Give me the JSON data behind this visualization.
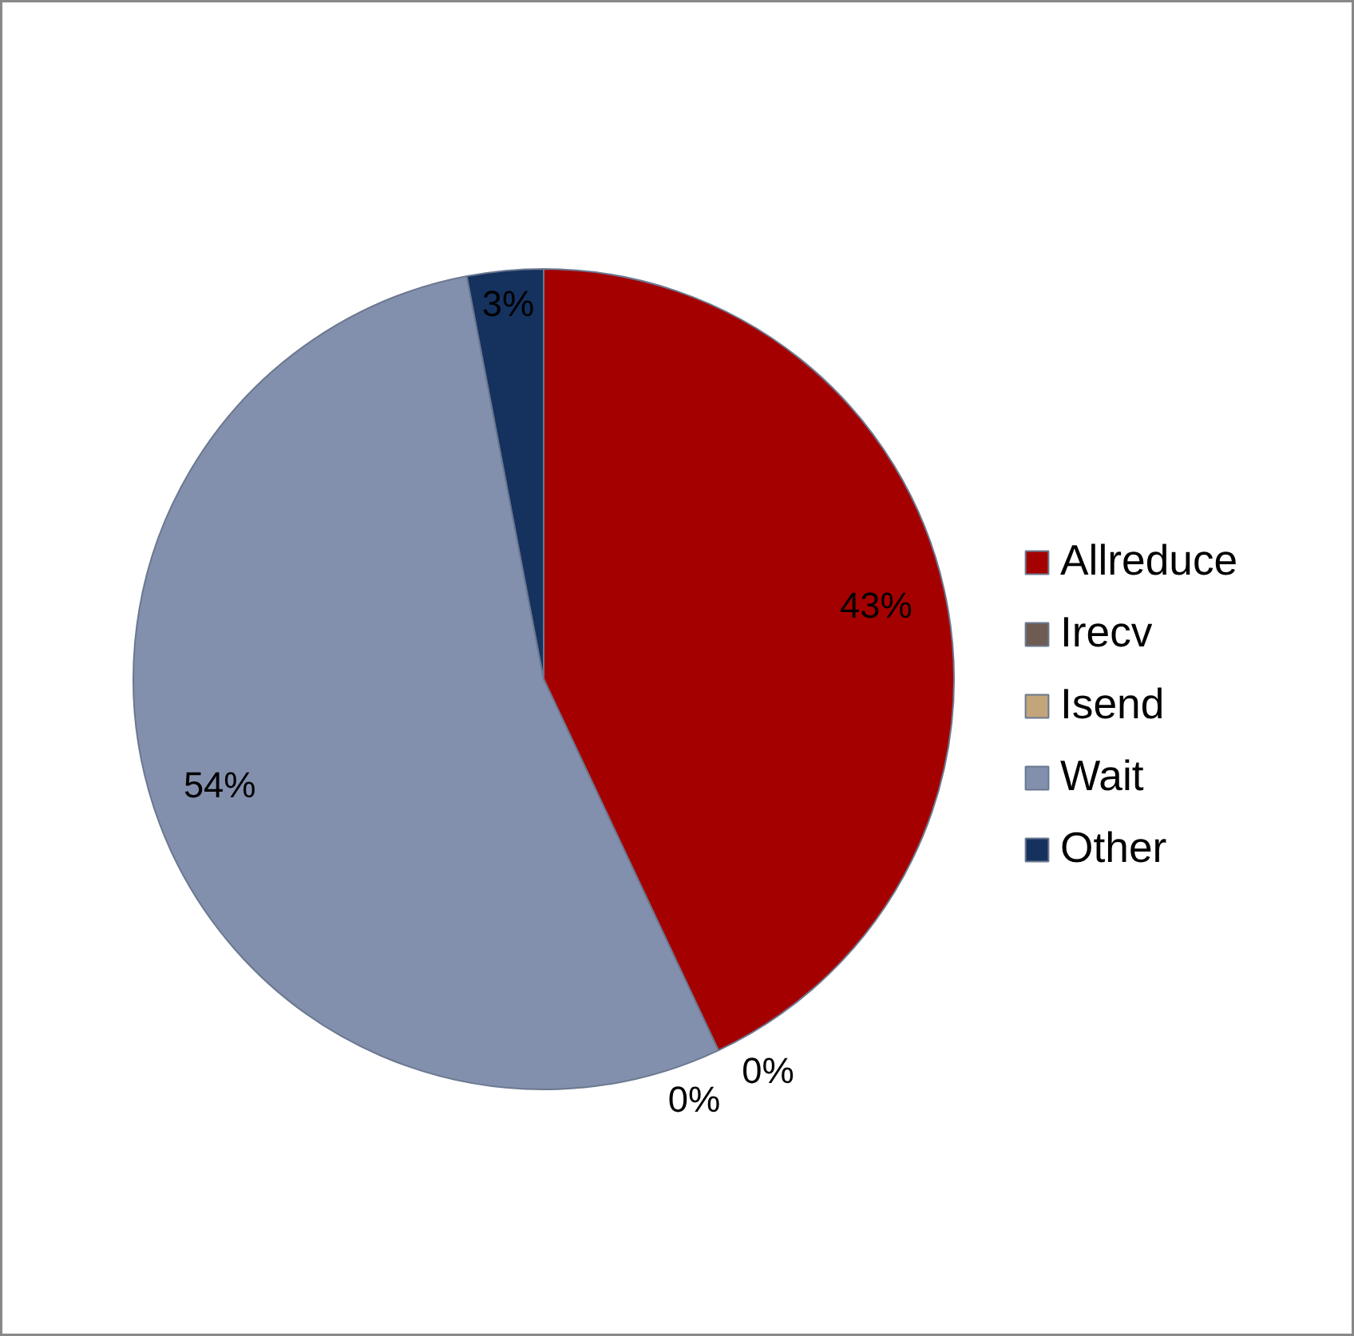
{
  "chart_data": {
    "type": "pie",
    "categories": [
      "Allreduce",
      "Irecv",
      "Isend",
      "Wait",
      "Other"
    ],
    "values": [
      43,
      0,
      0,
      54,
      3
    ],
    "colors": [
      "#a50000",
      "#6e5c52",
      "#c2a57a",
      "#8390ad",
      "#15315e"
    ],
    "value_labels": [
      "43%",
      "0%",
      "0%",
      "54%",
      "3%"
    ],
    "legend": "right"
  }
}
